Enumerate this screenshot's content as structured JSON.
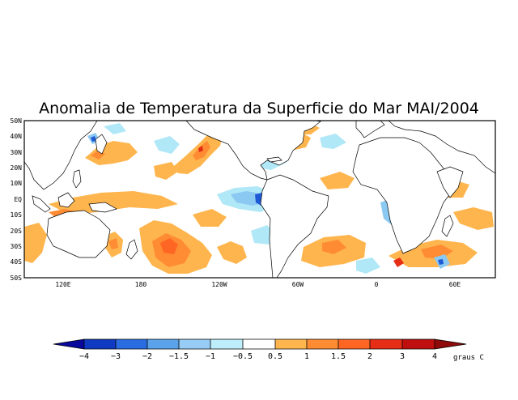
{
  "map": {
    "title": "Anomalia de Temperatura da Superficie do Mar MAI/2004",
    "lat_ticks": [
      "50N",
      "40N",
      "30N",
      "20N",
      "10N",
      "EQ",
      "10S",
      "20S",
      "30S",
      "40S",
      "50S"
    ],
    "lon_ticks": [
      "120E",
      "180",
      "120W",
      "60W",
      "0",
      "60E"
    ],
    "units": "graus C",
    "region": "Global ocean, 50S to 50N",
    "colors": {
      "ocean_background": "#ffffff",
      "coast": "#000000",
      "warm_mild": "#ffb54d",
      "warm_medium": "#ff8c33",
      "warm_strong": "#ff6624",
      "warm_hot": "#e62e16",
      "cool_mild": "#b0e8f7",
      "cool_medium": "#8cc9f2",
      "cool_strong": "#529ee8",
      "cool_deep": "#1e59d6"
    }
  },
  "colorbar": {
    "labels": [
      "−4",
      "−3",
      "−2",
      "−1.5",
      "−1",
      "−0.5",
      "0.5",
      "1",
      "1.5",
      "2",
      "3",
      "4"
    ],
    "colors": [
      "#08099c",
      "#0e3bc2",
      "#2a6de0",
      "#5aa2ea",
      "#97ccf4",
      "#bfeefb",
      "#ffffff",
      "#ffb54d",
      "#ff8c33",
      "#ff6624",
      "#e62e16",
      "#c00f0f",
      "#8f0a0a"
    ]
  }
}
